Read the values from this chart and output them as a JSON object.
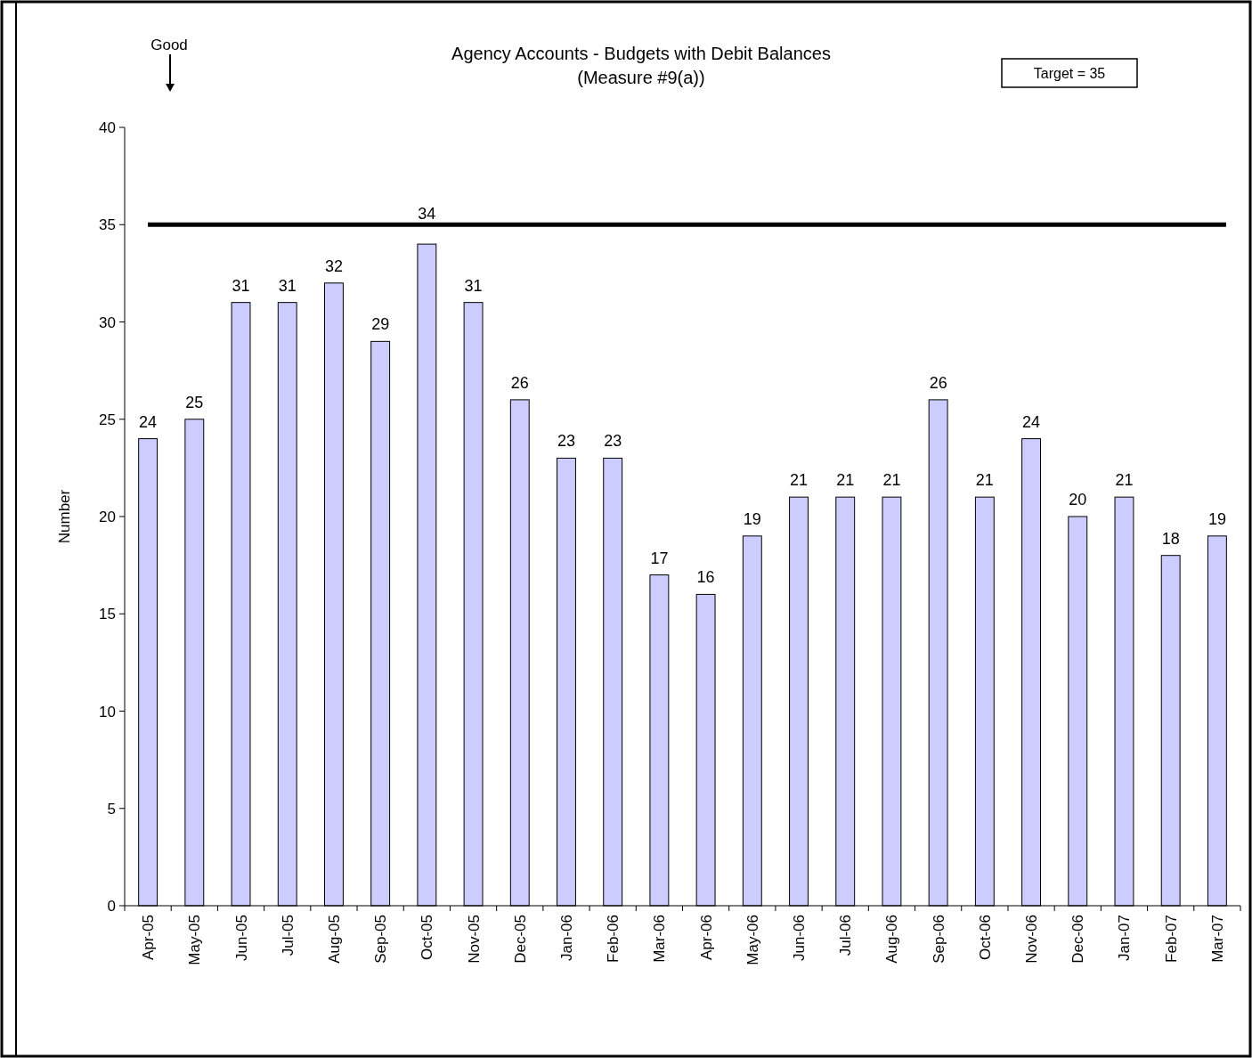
{
  "chart_data": {
    "type": "bar",
    "title": "Agency Accounts - Budgets with Debit Balances",
    "subtitle": "(Measure #9(a))",
    "ylabel": "Number",
    "categories": [
      "Apr-05",
      "May-05",
      "Jun-05",
      "Jul-05",
      "Aug-05",
      "Sep-05",
      "Oct-05",
      "Nov-05",
      "Dec-05",
      "Jan-06",
      "Feb-06",
      "Mar-06",
      "Apr-06",
      "May-06",
      "Jun-06",
      "Jul-06",
      "Aug-06",
      "Sep-06",
      "Oct-06",
      "Nov-06",
      "Dec-06",
      "Jan-07",
      "Feb-07",
      "Mar-07"
    ],
    "values": [
      24,
      25,
      31,
      31,
      32,
      29,
      34,
      31,
      26,
      23,
      23,
      17,
      16,
      19,
      21,
      21,
      21,
      26,
      21,
      24,
      20,
      21,
      18,
      19
    ],
    "color": "#ccccff",
    "ylim": [
      0,
      40
    ],
    "yticks": [
      0,
      5,
      10,
      15,
      20,
      25,
      30,
      35,
      40
    ],
    "grid": false,
    "data_labels": true,
    "ref_lines": [
      {
        "axis": "y",
        "value": 35,
        "label": "Target = 35",
        "color": "#000000"
      }
    ],
    "annotations": [
      "Good"
    ]
  }
}
